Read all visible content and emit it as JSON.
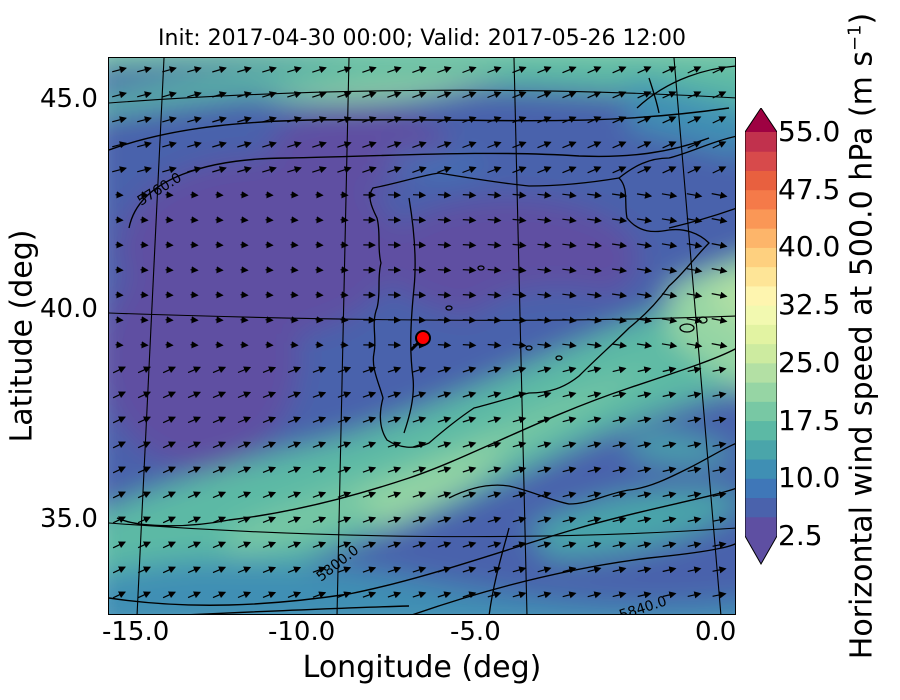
{
  "title": "Init: 2017-04-30 00:00; Valid: 2017-05-26 12:00",
  "xlabel": "Longitude (deg)",
  "ylabel": "Latitude (deg)",
  "colorbar": {
    "label_prefix": "Horizontal wind speed at 500.0 hPa (m s",
    "label_exp": "−1",
    "label_suffix": ")",
    "min": 2.5,
    "max": 55.0,
    "step": 2.5,
    "tick_labels": [
      "2.5",
      "10.0",
      "17.5",
      "25.0",
      "32.5",
      "40.0",
      "47.5",
      "55.0"
    ],
    "tick_values": [
      2.5,
      10.0,
      17.5,
      25.0,
      32.5,
      40.0,
      47.5,
      55.0
    ],
    "colors": [
      "#5e4fa2",
      "#4a62ac",
      "#3f77b8",
      "#3f8fb4",
      "#4aa5aa",
      "#5cb9a5",
      "#78c8a4",
      "#96d5a4",
      "#b3e0a4",
      "#cdeba0",
      "#e2f3a2",
      "#f2f9b0",
      "#fef5af",
      "#fee597",
      "#fed07f",
      "#fdb56a",
      "#fa9756",
      "#f57a49",
      "#e8603f",
      "#d74a4b",
      "#c1314d"
    ],
    "under_color": "#5e4fa2",
    "over_color": "#9e0142"
  },
  "axes": {
    "x_tick_labels": [
      "-15.0",
      "-10.0",
      "-5.0",
      "0.0"
    ],
    "x_tick_values": [
      -15.0,
      -10.0,
      -5.0,
      0.0
    ],
    "y_tick_labels": [
      "35.0",
      "40.0",
      "45.0"
    ],
    "y_tick_values": [
      35.0,
      40.0,
      45.0
    ],
    "xlim": [
      -15.9,
      0.3
    ],
    "ylim": [
      32.8,
      46.1
    ]
  },
  "contours": {
    "geopotential_labels": [
      "5760.0",
      "5800.0",
      "5840.0"
    ]
  },
  "marker": {
    "lon": -7.6,
    "lat": 39.3,
    "color": "#ff0000"
  }
}
